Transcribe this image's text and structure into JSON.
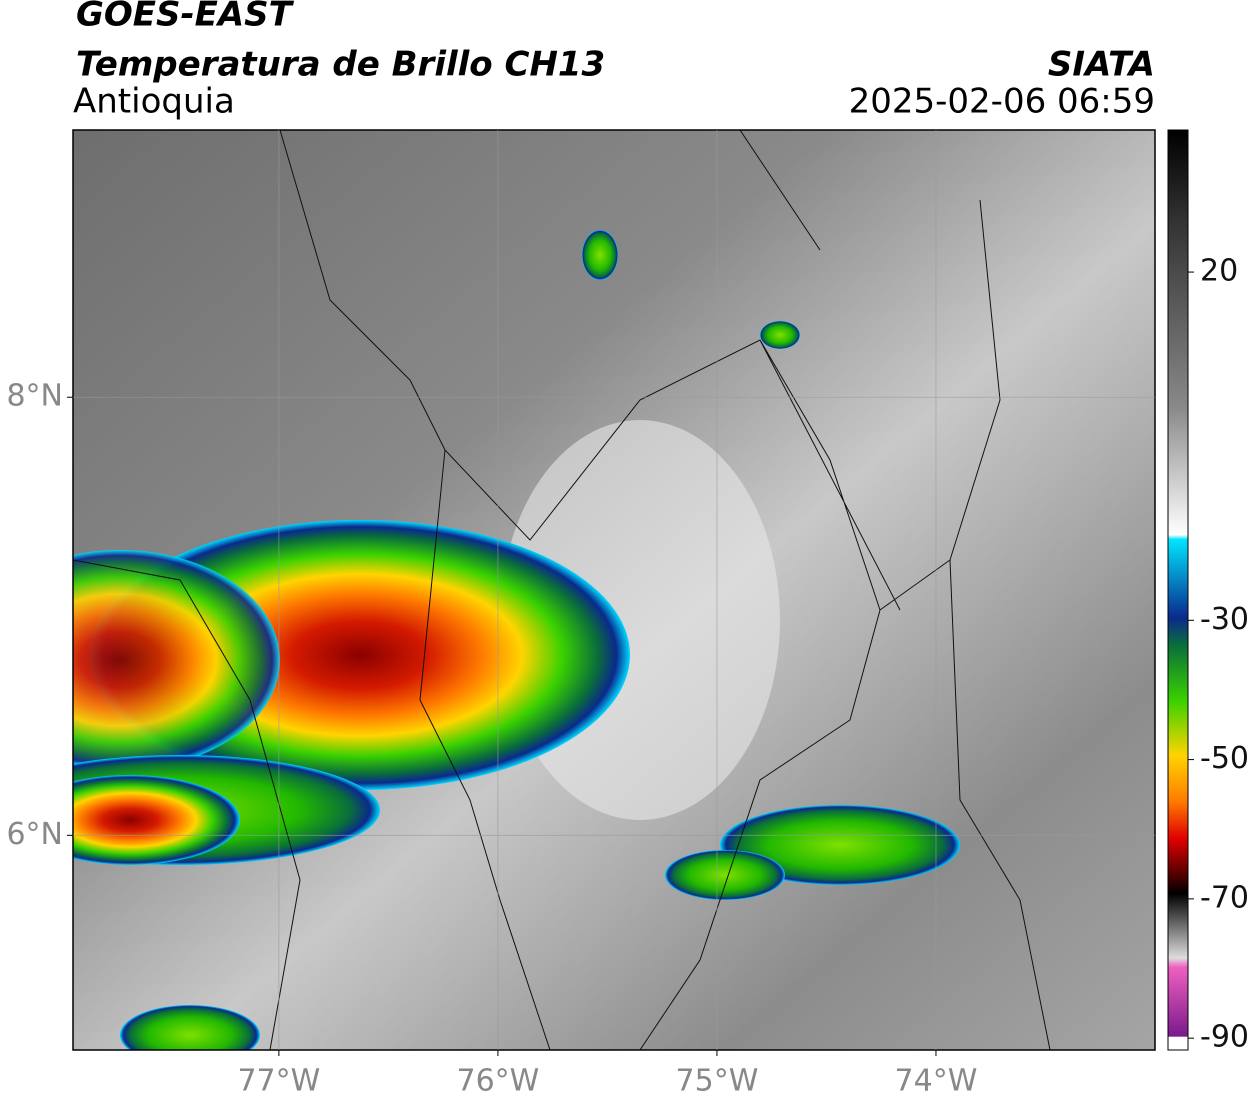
{
  "header": {
    "title": "GOES-EAST",
    "subtitle": "Temperatura de Brillo CH13",
    "region": "Antioquia",
    "source": "SIATA",
    "datetime": "2025-02-06 06:59"
  },
  "map": {
    "xlim": [
      -77.94,
      -73.0
    ],
    "ylim": [
      5.02,
      9.22
    ],
    "grid": true,
    "xticks": [
      {
        "value": -77,
        "label": "77°W"
      },
      {
        "value": -76,
        "label": "76°W"
      },
      {
        "value": -75,
        "label": "75°W"
      },
      {
        "value": -74,
        "label": "74°W"
      }
    ],
    "yticks": [
      {
        "value": 8,
        "label": "8°N"
      },
      {
        "value": 6,
        "label": "6°N"
      }
    ]
  },
  "colorbar": {
    "clim": [
      -91.7,
      40.4
    ],
    "ticks": [
      20,
      -30,
      -50,
      -70,
      -90
    ]
  }
}
